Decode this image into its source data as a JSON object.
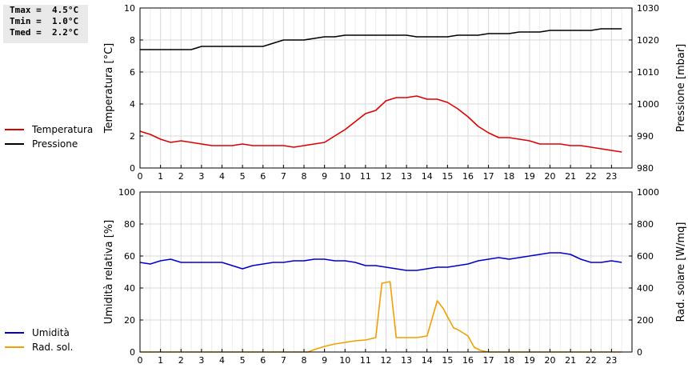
{
  "stats": {
    "tmax": "Tmax =  4.5°C",
    "tmin": "Tmin =  1.0°C",
    "tmed": "Tmed =  2.2°C"
  },
  "legend_top": [
    {
      "label": "Temperatura",
      "color": "#dd0000"
    },
    {
      "label": "Pressione",
      "color": "#000000"
    }
  ],
  "legend_bottom": [
    {
      "label": "Umidità",
      "color": "#0000cc"
    },
    {
      "label": "Rad. sol.",
      "color": "#f0a000"
    }
  ],
  "chart_data": [
    {
      "type": "line",
      "xlim": [
        0,
        24
      ],
      "xticks": [
        0,
        1,
        2,
        3,
        4,
        5,
        6,
        7,
        8,
        9,
        10,
        11,
        12,
        13,
        14,
        15,
        16,
        17,
        18,
        19,
        20,
        21,
        22,
        23
      ],
      "ylabel": "Temperatura [°C]",
      "ylim": [
        0,
        10
      ],
      "yticks": [
        0,
        2,
        4,
        6,
        8,
        10
      ],
      "y2label": "Pressione [mbar]",
      "y2lim": [
        980,
        1030
      ],
      "y2ticks": [
        980,
        990,
        1000,
        1010,
        1020,
        1030
      ],
      "grid": true,
      "series": [
        {
          "name": "Temperatura",
          "axis": "left",
          "color": "#dd0000",
          "x": [
            0,
            0.5,
            1,
            1.5,
            2,
            2.5,
            3,
            3.5,
            4,
            4.5,
            5,
            5.5,
            6,
            6.5,
            7,
            7.5,
            8,
            8.5,
            9,
            9.5,
            10,
            10.5,
            11,
            11.5,
            12,
            12.5,
            13,
            13.5,
            14,
            14.5,
            15,
            15.5,
            16,
            16.5,
            17,
            17.5,
            18,
            18.5,
            19,
            19.5,
            20,
            20.5,
            21,
            21.5,
            22,
            22.5,
            23,
            23.5
          ],
          "y": [
            2.3,
            2.1,
            1.8,
            1.6,
            1.7,
            1.6,
            1.5,
            1.4,
            1.4,
            1.4,
            1.5,
            1.4,
            1.4,
            1.4,
            1.4,
            1.3,
            1.4,
            1.5,
            1.6,
            2.0,
            2.4,
            2.9,
            3.4,
            3.6,
            4.2,
            4.4,
            4.4,
            4.5,
            4.3,
            4.3,
            4.1,
            3.7,
            3.2,
            2.6,
            2.2,
            1.9,
            1.9,
            1.8,
            1.7,
            1.5,
            1.5,
            1.5,
            1.4,
            1.4,
            1.3,
            1.2,
            1.1,
            1.0
          ]
        },
        {
          "name": "Pressione",
          "axis": "right",
          "color": "#000000",
          "x": [
            0,
            0.5,
            1,
            1.5,
            2,
            2.5,
            3,
            3.5,
            4,
            4.5,
            5,
            5.5,
            6,
            6.5,
            7,
            7.5,
            8,
            8.5,
            9,
            9.5,
            10,
            10.5,
            11,
            11.5,
            12,
            12.5,
            13,
            13.5,
            14,
            14.5,
            15,
            15.5,
            16,
            16.5,
            17,
            17.5,
            18,
            18.5,
            19,
            19.5,
            20,
            20.5,
            21,
            21.5,
            22,
            22.5,
            23,
            23.5
          ],
          "y": [
            1017,
            1017,
            1017,
            1017,
            1017,
            1017,
            1018,
            1018,
            1018,
            1018,
            1018,
            1018,
            1018,
            1019,
            1020,
            1020,
            1020,
            1020.5,
            1021,
            1021,
            1021.5,
            1021.5,
            1021.5,
            1021.5,
            1021.5,
            1021.5,
            1021.5,
            1021,
            1021,
            1021,
            1021,
            1021.5,
            1021.5,
            1021.5,
            1022,
            1022,
            1022,
            1022.5,
            1022.5,
            1022.5,
            1023,
            1023,
            1023,
            1023,
            1023,
            1023.5,
            1023.5,
            1023.5
          ]
        }
      ]
    },
    {
      "type": "line",
      "xlim": [
        0,
        24
      ],
      "xticks": [
        0,
        1,
        2,
        3,
        4,
        5,
        6,
        7,
        8,
        9,
        10,
        11,
        12,
        13,
        14,
        15,
        16,
        17,
        18,
        19,
        20,
        21,
        22,
        23
      ],
      "ylabel": "Umidità relativa [%]",
      "ylim": [
        0,
        100
      ],
      "yticks": [
        0,
        20,
        40,
        60,
        80,
        100
      ],
      "y2label": "Rad. solare [W/mq]",
      "y2lim": [
        0,
        1000
      ],
      "y2ticks": [
        0,
        200,
        400,
        600,
        800,
        1000
      ],
      "grid": true,
      "series": [
        {
          "name": "Umidità",
          "axis": "left",
          "color": "#0000cc",
          "x": [
            0,
            0.5,
            1,
            1.5,
            2,
            2.5,
            3,
            3.5,
            4,
            4.5,
            5,
            5.5,
            6,
            6.5,
            7,
            7.5,
            8,
            8.5,
            9,
            9.5,
            10,
            10.5,
            11,
            11.5,
            12,
            12.5,
            13,
            13.5,
            14,
            14.5,
            15,
            15.5,
            16,
            16.5,
            17,
            17.5,
            18,
            18.5,
            19,
            19.5,
            20,
            20.5,
            21,
            21.5,
            22,
            22.5,
            23,
            23.5
          ],
          "y": [
            56,
            55,
            57,
            58,
            56,
            56,
            56,
            56,
            56,
            54,
            52,
            54,
            55,
            56,
            56,
            57,
            57,
            58,
            58,
            57,
            57,
            56,
            54,
            54,
            53,
            52,
            51,
            51,
            52,
            53,
            53,
            54,
            55,
            57,
            58,
            59,
            58,
            59,
            60,
            61,
            62,
            62,
            61,
            58,
            56,
            56,
            57,
            56
          ]
        },
        {
          "name": "Rad. sol.",
          "axis": "right",
          "color": "#f0a000",
          "x": [
            0,
            1,
            2,
            3,
            4,
            5,
            6,
            7,
            8,
            8.2,
            8.5,
            9,
            9.5,
            10,
            10.5,
            11,
            11.5,
            11.8,
            12.2,
            12.5,
            13,
            13.5,
            14,
            14.5,
            14.8,
            15,
            15.3,
            15.5,
            16,
            16.3,
            16.6,
            17,
            17.5,
            18,
            19,
            20,
            21,
            22,
            23,
            23.5
          ],
          "y": [
            0,
            0,
            0,
            0,
            0,
            0,
            0,
            0,
            0,
            0,
            15,
            35,
            50,
            60,
            70,
            75,
            90,
            430,
            440,
            90,
            90,
            90,
            100,
            320,
            270,
            220,
            150,
            140,
            100,
            30,
            10,
            0,
            0,
            0,
            0,
            0,
            0,
            0,
            0,
            0
          ]
        }
      ]
    }
  ]
}
